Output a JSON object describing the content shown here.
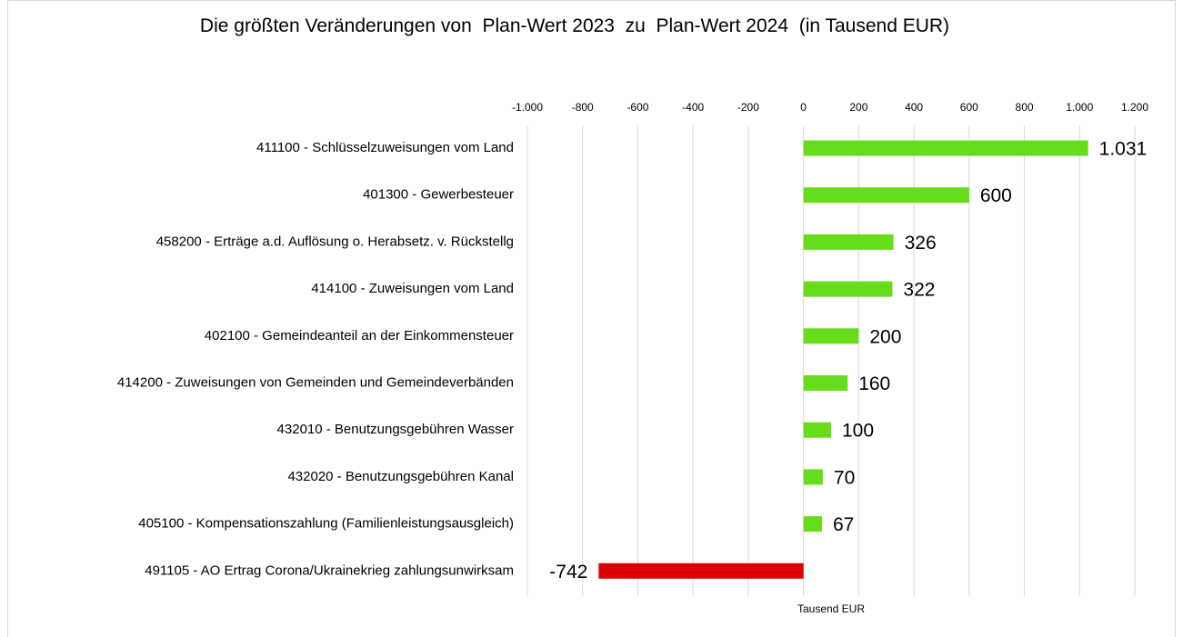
{
  "chart_data": {
    "type": "bar",
    "orientation": "horizontal",
    "title": "Die größten Veränderungen von  Plan-Wert 2023  zu  Plan-Wert 2024  (in Tausend EUR)",
    "xlabel": "Tausend EUR",
    "categories": [
      "411100 - Schlüsselzuweisungen vom Land",
      "401300 - Gewerbesteuer",
      "458200 - Erträge a.d. Auflösung o. Herabsetz. v. Rückstellg",
      "414100 - Zuweisungen vom Land",
      "402100 - Gemeindeanteil an der Einkommensteuer",
      "414200 - Zuweisungen von Gemeinden und Gemeindeverbänden",
      "432010 - Benutzungsgebühren Wasser",
      "432020 - Benutzungsgebühren Kanal",
      "405100 - Kompensationszahlung (Familienleistungsausgleich)",
      "491105 - AO Ertrag Corona/Ukrainekrieg zahlungsunwirksam"
    ],
    "values": [
      1031,
      600,
      326,
      322,
      200,
      160,
      100,
      70,
      67,
      -742
    ],
    "value_labels": [
      "1.031",
      "600",
      "326",
      "322",
      "200",
      "160",
      "100",
      "70",
      "67",
      "-742"
    ],
    "colors": [
      "#66dd1a",
      "#66dd1a",
      "#66dd1a",
      "#66dd1a",
      "#66dd1a",
      "#66dd1a",
      "#66dd1a",
      "#66dd1a",
      "#66dd1a",
      "#dd0000"
    ],
    "xlim": [
      -1000,
      1200
    ],
    "xticks": [
      {
        "value": -1000,
        "label": "-1.000"
      },
      -800,
      -600,
      -400,
      -200,
      0,
      200,
      400,
      600,
      800,
      {
        "value": 1000,
        "label": "1.000"
      },
      {
        "value": 1200,
        "label": "1.200"
      }
    ],
    "grid": true
  }
}
